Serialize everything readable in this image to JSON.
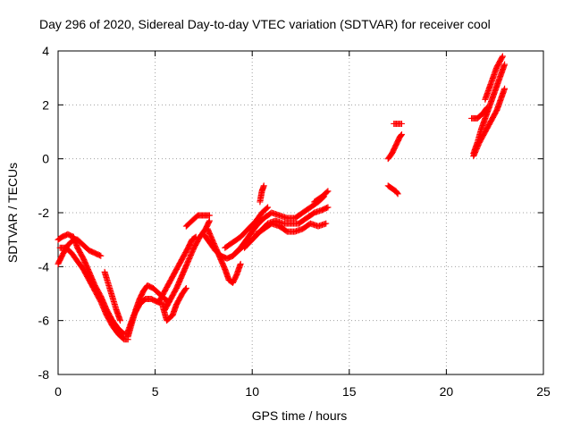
{
  "chart_data": {
    "type": "scatter",
    "title": "Day 296 of 2020, Sidereal Day-to-day VTEC variation (SDTVAR) for receiver cool",
    "xlabel": "GPS time / hours",
    "ylabel": "SDTVAR / TECUs",
    "xlim": [
      0,
      25
    ],
    "ylim": [
      -8,
      4
    ],
    "xticks": [
      "0",
      "5",
      "10",
      "15",
      "20",
      "25"
    ],
    "yticks": [
      "-8",
      "-6",
      "-4",
      "-2",
      "0",
      "2",
      "4"
    ],
    "grid": true,
    "marker": "+",
    "color": "#ff0000",
    "series": [
      {
        "segments": [
          [
            [
              0.0,
              -3.9
            ],
            [
              0.2,
              -3.6
            ],
            [
              0.5,
              -3.2
            ],
            [
              0.8,
              -3.0
            ],
            [
              1.0,
              -3.0
            ],
            [
              1.3,
              -3.2
            ],
            [
              1.6,
              -3.4
            ],
            [
              1.9,
              -3.5
            ],
            [
              2.2,
              -3.6
            ]
          ],
          [
            [
              0.0,
              -3.0
            ],
            [
              0.2,
              -2.9
            ],
            [
              0.5,
              -2.8
            ],
            [
              0.8,
              -2.9
            ],
            [
              1.0,
              -3.3
            ],
            [
              1.3,
              -3.7
            ],
            [
              1.6,
              -4.2
            ],
            [
              1.9,
              -4.7
            ],
            [
              2.2,
              -5.1
            ],
            [
              2.5,
              -5.6
            ],
            [
              2.8,
              -6.0
            ],
            [
              3.1,
              -6.3
            ],
            [
              3.4,
              -6.5
            ],
            [
              3.6,
              -6.5
            ]
          ],
          [
            [
              0.1,
              -3.3
            ],
            [
              0.4,
              -3.3
            ],
            [
              0.7,
              -3.5
            ],
            [
              1.0,
              -3.8
            ],
            [
              1.3,
              -4.1
            ],
            [
              1.6,
              -4.5
            ],
            [
              1.9,
              -4.9
            ],
            [
              2.2,
              -5.3
            ],
            [
              2.5,
              -5.8
            ],
            [
              2.8,
              -6.2
            ],
            [
              3.1,
              -6.5
            ],
            [
              3.4,
              -6.7
            ],
            [
              3.6,
              -6.7
            ]
          ],
          [
            [
              2.4,
              -4.2
            ],
            [
              2.7,
              -4.9
            ],
            [
              3.0,
              -5.6
            ],
            [
              3.2,
              -6.0
            ]
          ],
          [
            [
              3.6,
              -6.6
            ],
            [
              3.8,
              -6.1
            ],
            [
              4.0,
              -5.6
            ],
            [
              4.2,
              -5.2
            ],
            [
              4.4,
              -4.9
            ],
            [
              4.6,
              -4.7
            ],
            [
              4.9,
              -4.8
            ],
            [
              5.2,
              -5.0
            ],
            [
              5.5,
              -5.2
            ],
            [
              5.7,
              -5.3
            ]
          ],
          [
            [
              3.6,
              -6.4
            ],
            [
              3.9,
              -5.8
            ],
            [
              4.2,
              -5.4
            ],
            [
              4.5,
              -5.2
            ],
            [
              4.8,
              -5.2
            ],
            [
              5.1,
              -5.3
            ],
            [
              5.4,
              -5.4
            ],
            [
              5.6,
              -5.4
            ]
          ],
          [
            [
              5.4,
              -5.5
            ],
            [
              5.6,
              -6.0
            ],
            [
              5.9,
              -5.8
            ],
            [
              6.1,
              -5.4
            ],
            [
              6.4,
              -5.0
            ],
            [
              6.6,
              -4.8
            ]
          ],
          [
            [
              5.2,
              -5.3
            ],
            [
              5.5,
              -4.9
            ],
            [
              5.8,
              -4.5
            ],
            [
              6.1,
              -4.1
            ],
            [
              6.4,
              -3.7
            ],
            [
              6.7,
              -3.3
            ],
            [
              6.9,
              -3.0
            ],
            [
              7.1,
              -2.9
            ]
          ],
          [
            [
              5.5,
              -5.6
            ],
            [
              5.8,
              -5.2
            ],
            [
              6.1,
              -4.8
            ],
            [
              6.4,
              -4.3
            ],
            [
              6.7,
              -3.8
            ],
            [
              7.0,
              -3.3
            ],
            [
              7.3,
              -2.9
            ],
            [
              7.6,
              -2.6
            ],
            [
              7.8,
              -2.3
            ]
          ],
          [
            [
              6.6,
              -2.5
            ],
            [
              6.9,
              -2.3
            ],
            [
              7.2,
              -2.1
            ],
            [
              7.5,
              -2.1
            ],
            [
              7.8,
              -2.1
            ]
          ],
          [
            [
              7.7,
              -2.6
            ],
            [
              8.0,
              -3.1
            ],
            [
              8.3,
              -3.6
            ],
            [
              8.6,
              -4.1
            ],
            [
              8.8,
              -4.5
            ],
            [
              9.0,
              -4.6
            ],
            [
              9.2,
              -4.3
            ],
            [
              9.4,
              -3.9
            ]
          ],
          [
            [
              7.5,
              -2.8
            ],
            [
              7.8,
              -3.1
            ],
            [
              8.1,
              -3.4
            ],
            [
              8.4,
              -3.6
            ],
            [
              8.7,
              -3.7
            ],
            [
              9.0,
              -3.6
            ],
            [
              9.3,
              -3.4
            ],
            [
              9.6,
              -3.2
            ]
          ],
          [
            [
              8.6,
              -3.3
            ],
            [
              9.0,
              -3.1
            ],
            [
              9.4,
              -2.9
            ],
            [
              9.8,
              -2.6
            ],
            [
              10.2,
              -2.3
            ],
            [
              10.5,
              -2.0
            ],
            [
              10.8,
              -1.8
            ]
          ],
          [
            [
              9.0,
              -3.6
            ],
            [
              9.4,
              -3.3
            ],
            [
              9.8,
              -2.9
            ],
            [
              10.2,
              -2.5
            ],
            [
              10.6,
              -2.2
            ],
            [
              11.0,
              -2.0
            ],
            [
              11.4,
              -2.1
            ],
            [
              11.8,
              -2.2
            ],
            [
              12.2,
              -2.2
            ],
            [
              12.6,
              -2.0
            ],
            [
              13.0,
              -1.8
            ],
            [
              13.4,
              -1.6
            ],
            [
              13.7,
              -1.4
            ]
          ],
          [
            [
              9.6,
              -3.3
            ],
            [
              10.0,
              -3.0
            ],
            [
              10.4,
              -2.7
            ],
            [
              10.8,
              -2.4
            ],
            [
              11.2,
              -2.3
            ],
            [
              11.6,
              -2.4
            ],
            [
              12.0,
              -2.4
            ],
            [
              12.4,
              -2.4
            ],
            [
              12.8,
              -2.2
            ],
            [
              13.2,
              -2.0
            ],
            [
              13.6,
              -1.9
            ],
            [
              13.9,
              -1.8
            ]
          ],
          [
            [
              10.2,
              -2.8
            ],
            [
              10.6,
              -2.6
            ],
            [
              11.0,
              -2.4
            ],
            [
              11.4,
              -2.5
            ],
            [
              11.8,
              -2.7
            ],
            [
              12.2,
              -2.7
            ],
            [
              12.6,
              -2.6
            ],
            [
              13.0,
              -2.4
            ],
            [
              13.4,
              -2.5
            ],
            [
              13.8,
              -2.4
            ]
          ],
          [
            [
              10.4,
              -1.6
            ],
            [
              10.5,
              -1.2
            ],
            [
              10.6,
              -1.0
            ]
          ],
          [
            [
              13.2,
              -1.6
            ],
            [
              13.4,
              -1.5
            ],
            [
              13.6,
              -1.4
            ],
            [
              13.9,
              -1.2
            ]
          ],
          [
            [
              17.0,
              0.0
            ],
            [
              17.2,
              0.2
            ],
            [
              17.4,
              0.5
            ],
            [
              17.6,
              0.8
            ],
            [
              17.7,
              0.9
            ]
          ],
          [
            [
              17.0,
              -1.0
            ],
            [
              17.2,
              -1.1
            ],
            [
              17.4,
              -1.2
            ],
            [
              17.5,
              -1.3
            ]
          ],
          [
            [
              17.3,
              1.3
            ],
            [
              17.5,
              1.3
            ],
            [
              17.7,
              1.3
            ]
          ],
          [
            [
              21.4,
              0.2
            ],
            [
              21.6,
              0.6
            ],
            [
              21.8,
              1.1
            ],
            [
              22.0,
              1.5
            ],
            [
              22.2,
              1.9
            ],
            [
              22.4,
              2.3
            ],
            [
              22.6,
              2.7
            ],
            [
              22.8,
              3.1
            ],
            [
              23.0,
              3.5
            ]
          ],
          [
            [
              21.3,
              1.5
            ],
            [
              21.6,
              1.5
            ],
            [
              21.9,
              1.7
            ],
            [
              22.1,
              1.9
            ]
          ],
          [
            [
              21.4,
              0.1
            ],
            [
              21.7,
              0.6
            ],
            [
              22.0,
              1.0
            ],
            [
              22.3,
              1.4
            ],
            [
              22.6,
              1.8
            ],
            [
              22.8,
              2.2
            ],
            [
              23.0,
              2.6
            ]
          ],
          [
            [
              22.0,
              2.2
            ],
            [
              22.3,
              2.8
            ],
            [
              22.6,
              3.4
            ],
            [
              22.9,
              3.8
            ]
          ]
        ]
      }
    ]
  }
}
